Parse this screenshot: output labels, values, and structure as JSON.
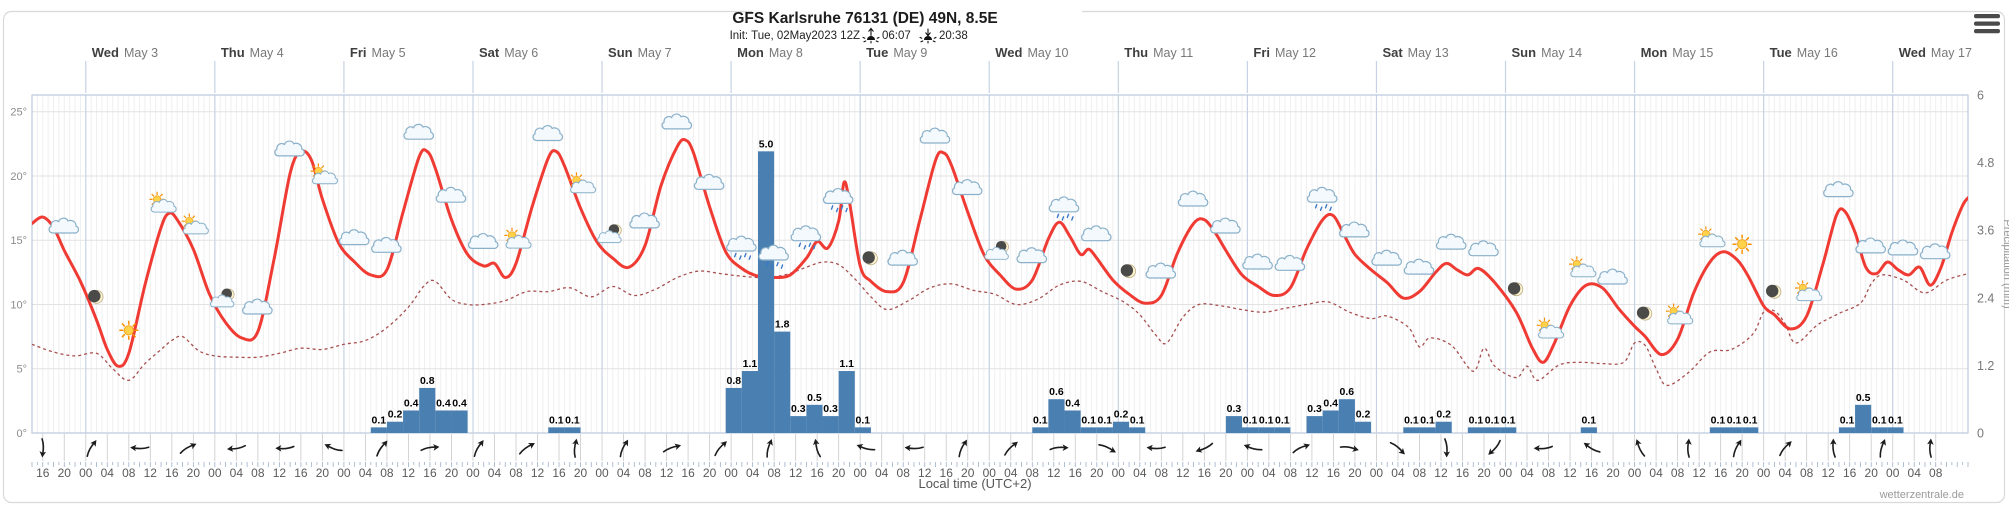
{
  "header": {
    "title": "GFS Karlsruhe 76131 (DE) 49N, 8.5E",
    "init_line": "Init: Tue, 02May2023 12Z",
    "sunrise": "06:07",
    "sunset": "20:38"
  },
  "axes": {
    "x_title": "Local time (UTC+2)",
    "right_title": "Precipitation (mm)",
    "temp_ticks": [
      "25°",
      "20°",
      "15°",
      "10°",
      "5°",
      "0°"
    ],
    "temp_tick_values": [
      25,
      20,
      15,
      10,
      5,
      0
    ],
    "precip_ticks": [
      "6",
      "4.8",
      "3.6",
      "2.4",
      "1.2",
      "0"
    ],
    "precip_tick_values": [
      6,
      4.8,
      3.6,
      2.4,
      1.2,
      0
    ],
    "hour_label_step_h": 4,
    "hour_labels_cycle": [
      "00",
      "04",
      "08",
      "12",
      "16",
      "20"
    ]
  },
  "footer": {
    "watermark": "wetterzentrale.de"
  },
  "chart_data": {
    "type": "line+bar meteogram",
    "title": "GFS Karlsruhe 76131 (DE) 49N, 8.5E",
    "time_start_local": "2023-05-02 14:00",
    "time_end_local": "2023-05-17 14:00",
    "hours_total": 360,
    "days": [
      {
        "weekday": "Wed",
        "date": "May 3"
      },
      {
        "weekday": "Thu",
        "date": "May 4"
      },
      {
        "weekday": "Fri",
        "date": "May 5"
      },
      {
        "weekday": "Sat",
        "date": "May 6"
      },
      {
        "weekday": "Sun",
        "date": "May 7"
      },
      {
        "weekday": "Mon",
        "date": "May 8"
      },
      {
        "weekday": "Tue",
        "date": "May 9"
      },
      {
        "weekday": "Wed",
        "date": "May 10"
      },
      {
        "weekday": "Thu",
        "date": "May 11"
      },
      {
        "weekday": "Fri",
        "date": "May 12"
      },
      {
        "weekday": "Sat",
        "date": "May 13"
      },
      {
        "weekday": "Sun",
        "date": "May 14"
      },
      {
        "weekday": "Mon",
        "date": "May 15"
      },
      {
        "weekday": "Tue",
        "date": "May 16"
      },
      {
        "weekday": "Wed",
        "date": "May 17"
      }
    ],
    "temp_axis": {
      "min": 0,
      "max": 26.3,
      "ticks": [
        0,
        5,
        10,
        15,
        20,
        25
      ],
      "unit": "°C"
    },
    "precip_axis": {
      "min": 0,
      "max": 6,
      "ticks": [
        0,
        1.2,
        2.4,
        3.6,
        4.8,
        6
      ],
      "unit": "mm"
    },
    "temperature_c": [
      [
        0,
        16.3
      ],
      [
        2,
        16.8
      ],
      [
        4,
        16.0
      ],
      [
        6,
        14.2
      ],
      [
        9,
        11.8
      ],
      [
        12,
        8.8
      ],
      [
        14,
        6.5
      ],
      [
        16,
        5.2
      ],
      [
        18,
        6.2
      ],
      [
        21,
        11.5
      ],
      [
        24,
        16.0
      ],
      [
        25.5,
        17.1
      ],
      [
        27,
        16.6
      ],
      [
        30,
        14.3
      ],
      [
        33,
        10.8
      ],
      [
        36,
        8.6
      ],
      [
        39,
        7.4
      ],
      [
        42,
        7.9
      ],
      [
        45,
        13.5
      ],
      [
        48,
        20.2
      ],
      [
        50,
        21.9
      ],
      [
        52,
        21.2
      ],
      [
        54,
        18.2
      ],
      [
        57,
        14.8
      ],
      [
        60,
        13.3
      ],
      [
        63,
        12.3
      ],
      [
        66,
        12.7
      ],
      [
        69,
        17.2
      ],
      [
        72,
        21.5
      ],
      [
        73.5,
        21.9
      ],
      [
        75,
        20.6
      ],
      [
        78,
        16.6
      ],
      [
        81,
        13.9
      ],
      [
        84,
        13.0
      ],
      [
        86,
        13.2
      ],
      [
        88,
        12.1
      ],
      [
        90,
        13.2
      ],
      [
        93,
        17.6
      ],
      [
        96,
        21.4
      ],
      [
        97.5,
        21.9
      ],
      [
        99,
        20.8
      ],
      [
        102,
        17.5
      ],
      [
        105,
        14.9
      ],
      [
        108,
        13.6
      ],
      [
        111,
        12.9
      ],
      [
        114,
        14.6
      ],
      [
        117,
        19.3
      ],
      [
        120,
        22.3
      ],
      [
        121.5,
        22.8
      ],
      [
        123,
        21.8
      ],
      [
        126,
        17.6
      ],
      [
        129,
        14.1
      ],
      [
        132,
        12.8
      ],
      [
        135,
        12.2
      ],
      [
        138,
        12.1
      ],
      [
        141,
        12.3
      ],
      [
        144,
        13.6
      ],
      [
        146,
        14.9
      ],
      [
        148,
        14.4
      ],
      [
        150,
        16.5
      ],
      [
        151,
        19.5
      ],
      [
        152,
        18.0
      ],
      [
        154,
        13.0
      ],
      [
        156,
        11.8
      ],
      [
        159,
        11.0
      ],
      [
        162,
        11.7
      ],
      [
        165,
        16.4
      ],
      [
        168,
        21.2
      ],
      [
        169.5,
        21.8
      ],
      [
        171,
        20.8
      ],
      [
        174,
        17.2
      ],
      [
        177,
        13.9
      ],
      [
        180,
        12.3
      ],
      [
        183,
        11.2
      ],
      [
        186,
        11.9
      ],
      [
        189,
        15.1
      ],
      [
        191,
        16.4
      ],
      [
        193,
        15.3
      ],
      [
        195,
        13.9
      ],
      [
        196.5,
        14.3
      ],
      [
        198,
        13.6
      ],
      [
        201,
        11.9
      ],
      [
        204,
        10.8
      ],
      [
        207,
        10.1
      ],
      [
        210,
        10.7
      ],
      [
        213,
        14.0
      ],
      [
        216,
        16.3
      ],
      [
        218,
        16.6
      ],
      [
        220,
        15.6
      ],
      [
        222,
        14.2
      ],
      [
        225,
        12.3
      ],
      [
        228,
        11.4
      ],
      [
        231,
        10.7
      ],
      [
        234,
        11.3
      ],
      [
        237,
        14.3
      ],
      [
        240,
        16.6
      ],
      [
        242,
        16.9
      ],
      [
        244,
        15.4
      ],
      [
        246,
        13.9
      ],
      [
        249,
        12.7
      ],
      [
        252,
        11.7
      ],
      [
        255,
        10.5
      ],
      [
        258,
        11.0
      ],
      [
        261,
        12.5
      ],
      [
        263,
        13.2
      ],
      [
        265,
        12.7
      ],
      [
        267,
        12.3
      ],
      [
        269,
        12.8
      ],
      [
        272,
        11.7
      ],
      [
        276,
        9.4
      ],
      [
        279,
        6.6
      ],
      [
        281,
        5.5
      ],
      [
        283,
        6.9
      ],
      [
        286,
        9.9
      ],
      [
        289,
        11.5
      ],
      [
        292,
        11.3
      ],
      [
        295,
        9.7
      ],
      [
        298,
        8.3
      ],
      [
        300,
        7.5
      ],
      [
        303,
        6.1
      ],
      [
        306,
        7.3
      ],
      [
        309,
        10.9
      ],
      [
        312,
        13.3
      ],
      [
        314.5,
        14.1
      ],
      [
        317,
        13.5
      ],
      [
        319,
        12.3
      ],
      [
        322,
        9.9
      ],
      [
        324,
        9.2
      ],
      [
        327,
        8.1
      ],
      [
        330,
        9.1
      ],
      [
        333,
        13.1
      ],
      [
        335.5,
        16.9
      ],
      [
        337,
        17.3
      ],
      [
        339,
        15.6
      ],
      [
        341,
        12.9
      ],
      [
        343,
        12.4
      ],
      [
        345,
        13.3
      ],
      [
        347,
        12.7
      ],
      [
        349,
        12.3
      ],
      [
        351,
        12.9
      ],
      [
        353,
        11.5
      ],
      [
        355,
        12.9
      ],
      [
        357,
        15.6
      ],
      [
        359,
        17.7
      ],
      [
        360,
        18.3
      ]
    ],
    "dewpoint_c": [
      [
        0,
        6.9
      ],
      [
        4,
        6.3
      ],
      [
        8,
        6.0
      ],
      [
        12,
        6.2
      ],
      [
        15,
        5.0
      ],
      [
        18,
        4.1
      ],
      [
        21,
        5.4
      ],
      [
        24,
        6.5
      ],
      [
        26,
        7.2
      ],
      [
        28,
        7.5
      ],
      [
        31,
        6.4
      ],
      [
        34,
        6.0
      ],
      [
        38,
        5.9
      ],
      [
        42,
        5.9
      ],
      [
        46,
        6.2
      ],
      [
        50,
        6.6
      ],
      [
        54,
        6.5
      ],
      [
        58,
        6.9
      ],
      [
        62,
        7.2
      ],
      [
        66,
        8.2
      ],
      [
        70,
        9.8
      ],
      [
        73,
        11.5
      ],
      [
        75,
        11.8
      ],
      [
        78,
        10.4
      ],
      [
        81,
        10.0
      ],
      [
        84,
        10.0
      ],
      [
        88,
        10.3
      ],
      [
        92,
        11.0
      ],
      [
        96,
        11.0
      ],
      [
        100,
        11.3
      ],
      [
        104,
        10.6
      ],
      [
        108,
        11.4
      ],
      [
        112,
        10.7
      ],
      [
        116,
        11.2
      ],
      [
        120,
        12.1
      ],
      [
        124,
        12.6
      ],
      [
        128,
        12.4
      ],
      [
        132,
        12.2
      ],
      [
        136,
        12.1
      ],
      [
        140,
        12.3
      ],
      [
        144,
        12.9
      ],
      [
        147,
        13.3
      ],
      [
        150,
        13.1
      ],
      [
        153,
        12.0
      ],
      [
        156,
        10.6
      ],
      [
        159,
        9.6
      ],
      [
        163,
        10.3
      ],
      [
        167,
        11.3
      ],
      [
        171,
        11.6
      ],
      [
        175,
        11.1
      ],
      [
        179,
        10.8
      ],
      [
        183,
        10.0
      ],
      [
        187,
        10.4
      ],
      [
        191,
        11.5
      ],
      [
        195,
        11.8
      ],
      [
        199,
        11.0
      ],
      [
        203,
        10.2
      ],
      [
        206,
        9.2
      ],
      [
        209,
        7.6
      ],
      [
        211,
        7.0
      ],
      [
        214,
        9.0
      ],
      [
        217,
        10.0
      ],
      [
        221,
        9.9
      ],
      [
        225,
        9.6
      ],
      [
        229,
        9.4
      ],
      [
        233,
        9.7
      ],
      [
        237,
        10.0
      ],
      [
        241,
        10.2
      ],
      [
        245,
        9.4
      ],
      [
        249,
        8.9
      ],
      [
        252,
        9.1
      ],
      [
        256,
        8.2
      ],
      [
        258,
        6.7
      ],
      [
        260,
        7.4
      ],
      [
        264,
        6.8
      ],
      [
        268,
        4.8
      ],
      [
        270,
        6.6
      ],
      [
        272,
        5.2
      ],
      [
        276,
        4.3
      ],
      [
        278,
        5.2
      ],
      [
        280,
        4.1
      ],
      [
        284,
        5.3
      ],
      [
        288,
        5.5
      ],
      [
        292,
        5.4
      ],
      [
        296,
        5.5
      ],
      [
        298,
        7.0
      ],
      [
        300,
        6.8
      ],
      [
        302,
        5.0
      ],
      [
        304,
        3.7
      ],
      [
        308,
        4.7
      ],
      [
        312,
        6.3
      ],
      [
        316,
        6.5
      ],
      [
        320,
        7.7
      ],
      [
        322,
        9.4
      ],
      [
        324,
        9.5
      ],
      [
        326,
        8.5
      ],
      [
        328,
        7.0
      ],
      [
        332,
        8.4
      ],
      [
        336,
        9.3
      ],
      [
        340,
        10.1
      ],
      [
        342,
        11.6
      ],
      [
        344,
        12.3
      ],
      [
        348,
        11.9
      ],
      [
        352,
        10.9
      ],
      [
        356,
        11.9
      ],
      [
        360,
        12.4
      ]
    ],
    "precip_mm_3h": [
      [
        63,
        0.1
      ],
      [
        66,
        0.2
      ],
      [
        69,
        0.4
      ],
      [
        72,
        0.8
      ],
      [
        75,
        0.4
      ],
      [
        78,
        0.4
      ],
      [
        96,
        0.1
      ],
      [
        99,
        0.1
      ],
      [
        129,
        0.8
      ],
      [
        132,
        1.1
      ],
      [
        135,
        5.0
      ],
      [
        138,
        1.8
      ],
      [
        141,
        0.3
      ],
      [
        144,
        0.5
      ],
      [
        147,
        0.3
      ],
      [
        150,
        1.1
      ],
      [
        153,
        0.1
      ],
      [
        186,
        0.1
      ],
      [
        189,
        0.6
      ],
      [
        192,
        0.4
      ],
      [
        195,
        0.1
      ],
      [
        198,
        0.1
      ],
      [
        201,
        0.2
      ],
      [
        204,
        0.1
      ],
      [
        222,
        0.3
      ],
      [
        225,
        0.1
      ],
      [
        228,
        0.1
      ],
      [
        231,
        0.1
      ],
      [
        237,
        0.3
      ],
      [
        240,
        0.4
      ],
      [
        243,
        0.6
      ],
      [
        246,
        0.2
      ],
      [
        255,
        0.1
      ],
      [
        258,
        0.1
      ],
      [
        261,
        0.2
      ],
      [
        267,
        0.1
      ],
      [
        270,
        0.1
      ],
      [
        273,
        0.1
      ],
      [
        288,
        0.1
      ],
      [
        312,
        0.1
      ],
      [
        315,
        0.1
      ],
      [
        318,
        0.1
      ],
      [
        336,
        0.1
      ],
      [
        339,
        0.5
      ],
      [
        342,
        0.1
      ],
      [
        345,
        0.1
      ]
    ],
    "icons": [
      [
        6,
        "cloud"
      ],
      [
        12,
        "moon"
      ],
      [
        18,
        "sun"
      ],
      [
        24,
        "sun-cloud"
      ],
      [
        30,
        "sun-cloud"
      ],
      [
        36,
        "moon-cloud"
      ],
      [
        42,
        "cloud"
      ],
      [
        48,
        "cloud"
      ],
      [
        54,
        "sun-cloud"
      ],
      [
        60,
        "cloud"
      ],
      [
        66,
        "cloud"
      ],
      [
        72,
        "cloud"
      ],
      [
        78,
        "cloud"
      ],
      [
        84,
        "cloud"
      ],
      [
        90,
        "sun-cloud"
      ],
      [
        96,
        "cloud"
      ],
      [
        102,
        "sun-cloud"
      ],
      [
        108,
        "moon-cloud"
      ],
      [
        114,
        "cloud"
      ],
      [
        120,
        "cloud"
      ],
      [
        126,
        "cloud"
      ],
      [
        132,
        "rain-cloud"
      ],
      [
        138,
        "rain-cloud"
      ],
      [
        144,
        "rain-cloud"
      ],
      [
        150,
        "rain-cloud"
      ],
      [
        156,
        "moon"
      ],
      [
        162,
        "cloud"
      ],
      [
        168,
        "cloud"
      ],
      [
        174,
        "cloud"
      ],
      [
        180,
        "moon-cloud"
      ],
      [
        186,
        "cloud"
      ],
      [
        192,
        "rain-cloud"
      ],
      [
        198,
        "cloud"
      ],
      [
        204,
        "moon"
      ],
      [
        210,
        "cloud"
      ],
      [
        216,
        "cloud"
      ],
      [
        222,
        "cloud"
      ],
      [
        228,
        "cloud"
      ],
      [
        234,
        "cloud"
      ],
      [
        240,
        "rain-cloud"
      ],
      [
        246,
        "cloud"
      ],
      [
        252,
        "cloud"
      ],
      [
        258,
        "cloud"
      ],
      [
        264,
        "cloud"
      ],
      [
        270,
        "cloud"
      ],
      [
        276,
        "moon"
      ],
      [
        282,
        "sun-cloud"
      ],
      [
        288,
        "sun-cloud"
      ],
      [
        294,
        "cloud"
      ],
      [
        300,
        "moon"
      ],
      [
        306,
        "sun-cloud"
      ],
      [
        312,
        "sun-cloud"
      ],
      [
        318,
        "sun"
      ],
      [
        324,
        "moon"
      ],
      [
        330,
        "sun-cloud"
      ],
      [
        336,
        "cloud"
      ],
      [
        342,
        "cloud"
      ],
      [
        348,
        "cloud"
      ],
      [
        354,
        "cloud"
      ]
    ],
    "wind_arrows_deg": [
      [
        2,
        95
      ],
      [
        11,
        -55
      ],
      [
        20,
        185
      ],
      [
        29,
        -25
      ],
      [
        38,
        175
      ],
      [
        47,
        180
      ],
      [
        56,
        205
      ],
      [
        65,
        -50
      ],
      [
        74,
        -5
      ],
      [
        83,
        -55
      ],
      [
        92,
        -30
      ],
      [
        101,
        -80
      ],
      [
        110,
        -60
      ],
      [
        119,
        -15
      ],
      [
        128,
        -45
      ],
      [
        137,
        -70
      ],
      [
        146,
        -100
      ],
      [
        155,
        200
      ],
      [
        164,
        185
      ],
      [
        173,
        -60
      ],
      [
        182,
        -40
      ],
      [
        191,
        0
      ],
      [
        200,
        30
      ],
      [
        209,
        185
      ],
      [
        218,
        160
      ],
      [
        227,
        200
      ],
      [
        236,
        -20
      ],
      [
        245,
        15
      ],
      [
        254,
        45
      ],
      [
        263,
        90
      ],
      [
        272,
        135
      ],
      [
        281,
        180
      ],
      [
        290,
        215
      ],
      [
        299,
        250
      ],
      [
        308,
        275
      ],
      [
        317,
        -60
      ],
      [
        326,
        -45
      ],
      [
        335,
        -90
      ],
      [
        344,
        -70
      ],
      [
        353,
        -85
      ]
    ],
    "legend_position": "none",
    "grid": true,
    "colors": {
      "temperature": "#ef3b33",
      "dewpoint": "#a85050",
      "precip_bar": "#4a7fb2",
      "day_line": "#c7d3e4",
      "grid_minor": "#efefef",
      "grid_major": "#e2e2e2",
      "plot_border": "#b9c9dc",
      "bar_label": "#000000"
    }
  }
}
